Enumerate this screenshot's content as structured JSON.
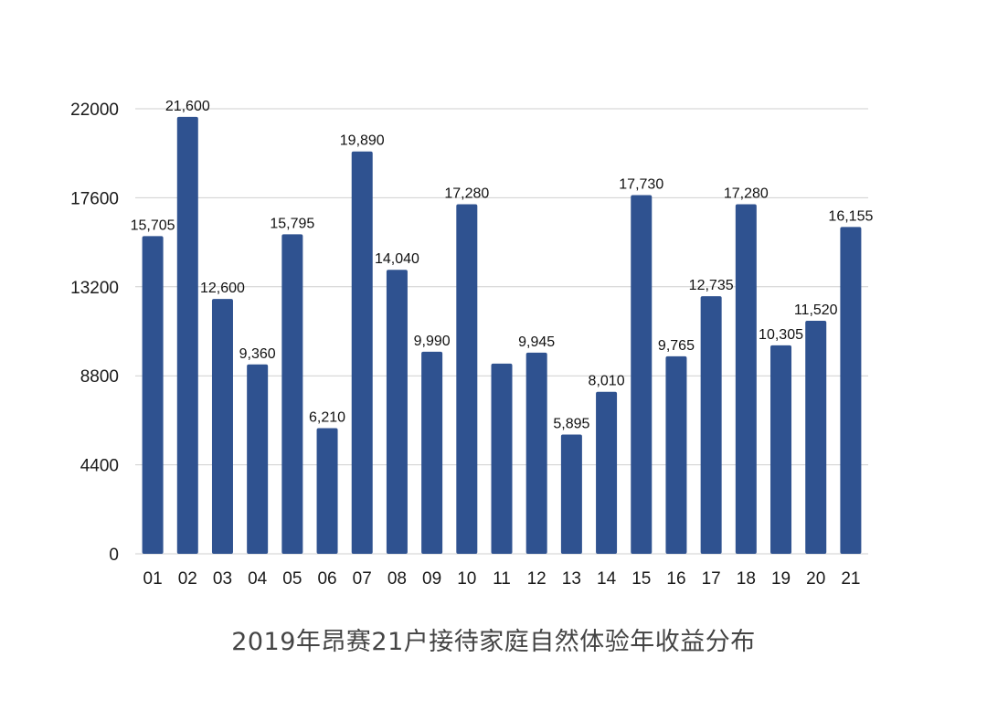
{
  "chart_data": {
    "type": "bar",
    "title": "2019年昂赛21户接待家庭自然体验年收益分布",
    "xlabel": "",
    "ylabel": "",
    "categories": [
      "01",
      "02",
      "03",
      "04",
      "05",
      "06",
      "07",
      "08",
      "09",
      "10",
      "11",
      "12",
      "13",
      "14",
      "15",
      "16",
      "17",
      "18",
      "19",
      "20",
      "21"
    ],
    "values": [
      15705,
      21600,
      12600,
      9360,
      15795,
      6210,
      19890,
      14040,
      9990,
      17280,
      9400,
      9945,
      5895,
      8010,
      17730,
      9765,
      12735,
      17280,
      10305,
      11520,
      16155
    ],
    "data_labels": [
      "15,705",
      "21,600",
      "12,600",
      "9,360",
      "15,795",
      "6,210",
      "19,890",
      "14,040",
      "9,990",
      "17,280",
      "",
      "9,945",
      "5,895",
      "8,010",
      "17,730",
      "9,765",
      "12,735",
      "17,280",
      "10,305",
      "11,520",
      "16,155"
    ],
    "yticks": [
      "0",
      "4400",
      "8800",
      "13200",
      "17600",
      "22000"
    ],
    "ylim": [
      0,
      22000
    ],
    "grid": true,
    "legend": "none",
    "bar_color": "#2f5290"
  }
}
